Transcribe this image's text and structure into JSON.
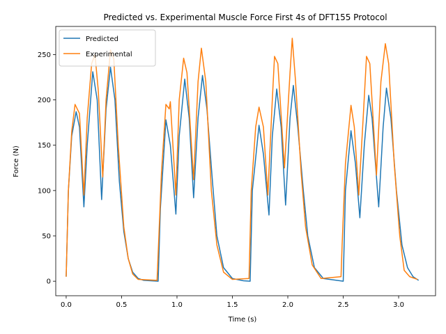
{
  "chart_data": {
    "type": "line",
    "title": "Predicted vs. Experimental Muscle Force First 4s of DFT155 Protocol",
    "x_label": "Time (s)",
    "y_label": "Force (N)",
    "xlim": [
      -0.094,
      3.333
    ],
    "ylim": [
      -16,
      281
    ],
    "xticks": [
      {
        "value": 0,
        "label": "0.0"
      },
      {
        "value": 0.5,
        "label": "0.5"
      },
      {
        "value": 1,
        "label": "1.0"
      },
      {
        "value": 1.5,
        "label": "1.5"
      },
      {
        "value": 2,
        "label": "2.0"
      },
      {
        "value": 2.5,
        "label": "2.5"
      },
      {
        "value": 3,
        "label": "3.0"
      }
    ],
    "yticks": [
      0,
      50,
      100,
      150,
      200,
      250
    ],
    "grid": false,
    "legend": "upper left",
    "series": [
      {
        "name": "Predicted",
        "color": "#1f77b4",
        "x": [
          0,
          0.02,
          0.05,
          0.09,
          0.12,
          0.16,
          0.19,
          0.24,
          0.28,
          0.32,
          0.36,
          0.4,
          0.44,
          0.48,
          0.52,
          0.56,
          0.6,
          0.65,
          0.7,
          0.83,
          0.85,
          0.9,
          0.94,
          0.99,
          1.02,
          1.07,
          1.11,
          1.15,
          1.19,
          1.23,
          1.27,
          1.32,
          1.36,
          1.42,
          1.5,
          1.6,
          1.66,
          1.68,
          1.74,
          1.78,
          1.83,
          1.86,
          1.9,
          1.94,
          1.98,
          2.02,
          2.05,
          2.09,
          2.14,
          2.18,
          2.24,
          2.32,
          2.5,
          2.52,
          2.57,
          2.61,
          2.65,
          2.69,
          2.73,
          2.76,
          2.82,
          2.86,
          2.89,
          2.93,
          2.98,
          3.03,
          3.08,
          3.13,
          3.18
        ],
        "values": [
          5,
          100,
          160,
          187,
          170,
          82,
          150,
          231,
          200,
          90,
          190,
          236,
          200,
          110,
          55,
          25,
          10,
          3,
          1,
          0,
          80,
          178,
          150,
          74,
          160,
          223,
          180,
          92,
          180,
          227,
          190,
          110,
          50,
          15,
          3,
          0.5,
          0,
          100,
          172,
          140,
          73,
          160,
          212,
          170,
          84,
          180,
          216,
          170,
          100,
          50,
          15,
          3,
          0,
          100,
          166,
          130,
          70,
          150,
          205,
          180,
          82,
          170,
          213,
          180,
          100,
          40,
          15,
          5,
          1
        ]
      },
      {
        "name": "Experimental",
        "color": "#ff7f0e",
        "x": [
          0,
          0.02,
          0.05,
          0.08,
          0.12,
          0.16,
          0.19,
          0.23,
          0.26,
          0.29,
          0.33,
          0.36,
          0.4,
          0.43,
          0.47,
          0.52,
          0.56,
          0.6,
          0.65,
          0.82,
          0.83,
          0.86,
          0.9,
          0.93,
          0.94,
          0.99,
          1.02,
          1.06,
          1.09,
          1.15,
          1.19,
          1.22,
          1.26,
          1.31,
          1.36,
          1.42,
          1.5,
          1.65,
          1.67,
          1.71,
          1.74,
          1.78,
          1.82,
          1.86,
          1.88,
          1.91,
          1.97,
          2.02,
          2.04,
          2.07,
          2.12,
          2.16,
          2.22,
          2.3,
          2.48,
          2.49,
          2.52,
          2.57,
          2.6,
          2.64,
          2.68,
          2.71,
          2.74,
          2.8,
          2.84,
          2.88,
          2.91,
          2.96,
          3.01,
          3.05,
          3.1,
          3.17
        ],
        "values": [
          5,
          100,
          165,
          195,
          185,
          95,
          180,
          240,
          250,
          210,
          115,
          200,
          255,
          245,
          150,
          60,
          25,
          8,
          2,
          1,
          30,
          120,
          195,
          190,
          198,
          95,
          200,
          246,
          230,
          112,
          220,
          257,
          220,
          100,
          40,
          10,
          2,
          3,
          100,
          170,
          192,
          170,
          95,
          200,
          248,
          240,
          125,
          230,
          268,
          220,
          120,
          60,
          18,
          3,
          5,
          40,
          130,
          194,
          170,
          95,
          180,
          248,
          240,
          117,
          220,
          262,
          240,
          130,
          50,
          12,
          5,
          2
        ]
      }
    ]
  }
}
